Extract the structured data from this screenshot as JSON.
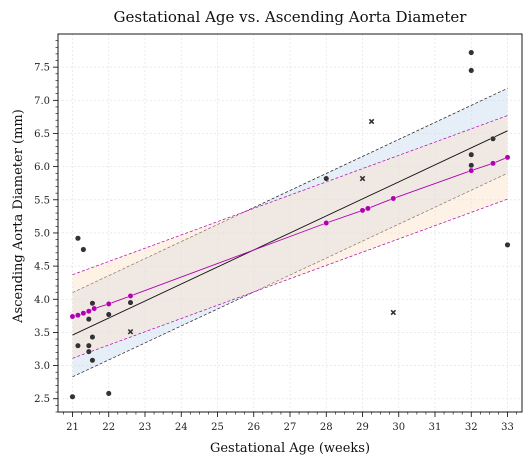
{
  "chart_data": {
    "type": "scatter",
    "title": "Gestational Age vs. Ascending Aorta Diameter",
    "xlabel": "Gestational Age (weeks)",
    "ylabel": "Ascending Aorta Diameter (mm)",
    "xlim": [
      20.6,
      33.4
    ],
    "ylim": [
      2.3,
      8.0
    ],
    "xticks": [
      21,
      22,
      23,
      24,
      25,
      26,
      27,
      28,
      29,
      30,
      31,
      32,
      33
    ],
    "yticks": [
      2.5,
      3.0,
      3.5,
      4.0,
      4.5,
      5.0,
      5.5,
      6.0,
      6.5,
      7.0,
      7.5
    ],
    "grid": true,
    "colors": {
      "observed": "#333333",
      "outlier": "#333333",
      "fit_line": "#111111",
      "fit_band": "#c8dcf0",
      "model": "#b000b0",
      "model_band": "#fce0c8"
    },
    "series": [
      {
        "marker": "circle",
        "x": [
          21.0,
          21.15,
          21.15,
          21.3,
          21.45,
          21.45,
          21.45,
          21.55,
          21.55,
          21.55,
          22.0,
          22.0,
          22.6,
          28.0,
          32.0,
          32.0,
          32.0,
          32.0,
          32.6,
          33.0
        ],
        "y": [
          2.53,
          4.92,
          3.3,
          4.75,
          3.7,
          3.3,
          3.21,
          3.94,
          3.43,
          3.08,
          3.77,
          2.58,
          3.95,
          5.82,
          7.72,
          7.45,
          6.18,
          6.02,
          6.42,
          4.82
        ]
      },
      {
        "marker": "x",
        "x": [
          22.6,
          29.0,
          29.25,
          29.85
        ],
        "y": [
          3.51,
          5.82,
          6.68,
          3.8
        ]
      },
      {
        "marker": "dot-line",
        "x": [
          21.0,
          21.15,
          21.3,
          21.45,
          21.6,
          22.0,
          22.6,
          28.0,
          29.0,
          29.15,
          29.85,
          32.0,
          32.6,
          33.0
        ],
        "y": [
          3.74,
          3.76,
          3.79,
          3.82,
          3.86,
          3.93,
          4.05,
          5.15,
          5.34,
          5.37,
          5.52,
          5.94,
          6.05,
          6.14
        ]
      }
    ],
    "fit_line": {
      "x": [
        21.0,
        33.0
      ],
      "y": [
        3.46,
        6.54
      ]
    },
    "fit_band": {
      "x": [
        21.0,
        33.0
      ],
      "lower": [
        2.83,
        5.9
      ],
      "upper": [
        4.1,
        7.18
      ]
    },
    "model_band": {
      "x": [
        21.0,
        33.0
      ],
      "lower": [
        3.11,
        5.51
      ],
      "upper": [
        4.37,
        6.77
      ]
    }
  }
}
